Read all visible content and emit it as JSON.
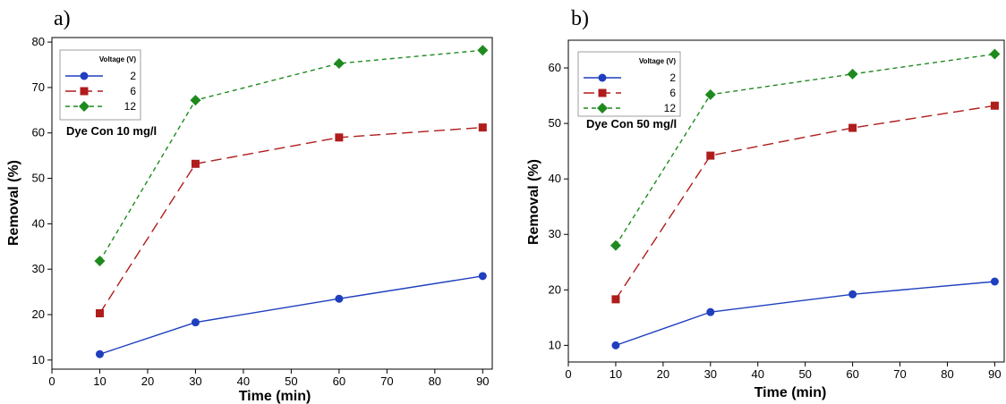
{
  "chart_data": [
    {
      "type": "line",
      "panel_label": "a)",
      "xlabel": "Time (min)",
      "ylabel": "Removal (%)",
      "xlim": [
        0,
        92
      ],
      "ylim": [
        8,
        81
      ],
      "xticks": [
        0,
        10,
        20,
        30,
        40,
        50,
        60,
        70,
        80,
        90
      ],
      "yticks": [
        10,
        20,
        30,
        40,
        50,
        60,
        70,
        80
      ],
      "legend_title": "Voltage (V)",
      "legend_position": "top-left",
      "annotation": "Dye Con 10 mg/l",
      "x": [
        10,
        30,
        60,
        90
      ],
      "series": [
        {
          "name": "2",
          "color": "#1f3fbf",
          "marker": "circle",
          "dash": "solid",
          "values": [
            11.3,
            18.3,
            23.5,
            28.5
          ]
        },
        {
          "name": "6",
          "color": "#b01c1c",
          "marker": "square",
          "dash": "long-dash",
          "values": [
            20.3,
            53.2,
            59.0,
            61.2
          ]
        },
        {
          "name": "12",
          "color": "#1e8a1e",
          "marker": "diamond",
          "dash": "short-dash",
          "values": [
            31.8,
            67.2,
            75.3,
            78.2
          ]
        }
      ]
    },
    {
      "type": "line",
      "panel_label": "b)",
      "xlabel": "Time (min)",
      "ylabel": "Removal (%)",
      "xlim": [
        0,
        92
      ],
      "ylim": [
        7,
        65
      ],
      "xticks": [
        0,
        10,
        20,
        30,
        40,
        50,
        60,
        70,
        80,
        90
      ],
      "yticks": [
        10,
        20,
        30,
        40,
        50,
        60
      ],
      "legend_title": "Voltage (V)",
      "legend_position": "top-left",
      "annotation": "Dye Con 50 mg/l",
      "x": [
        10,
        30,
        60,
        90
      ],
      "series": [
        {
          "name": "2",
          "color": "#1f3fbf",
          "marker": "circle",
          "dash": "solid",
          "values": [
            10.0,
            16.0,
            19.2,
            21.5
          ]
        },
        {
          "name": "6",
          "color": "#b01c1c",
          "marker": "square",
          "dash": "long-dash",
          "values": [
            18.3,
            44.2,
            49.2,
            53.2
          ]
        },
        {
          "name": "12",
          "color": "#1e8a1e",
          "marker": "diamond",
          "dash": "short-dash",
          "values": [
            28.0,
            55.2,
            58.9,
            62.5
          ]
        }
      ]
    }
  ]
}
